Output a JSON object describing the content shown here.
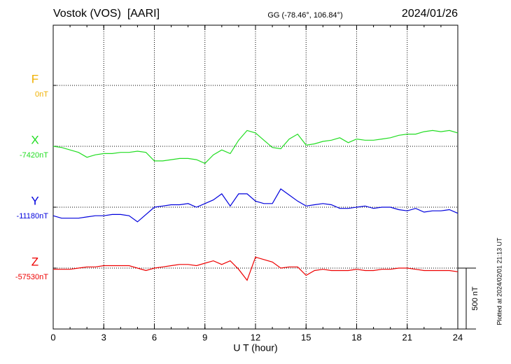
{
  "chart_data": {
    "type": "line",
    "title": "Vostok (VOS)  [AARI]",
    "subtitle": "GG (-78.46°, 106.84°)",
    "date": "2024/01/26",
    "xlabel": "U T (hour)",
    "note": "Plotted at 2024/02/01 21:13 UT",
    "xlim": [
      0,
      24
    ],
    "xticks": [
      0,
      3,
      6,
      9,
      12,
      15,
      18,
      21,
      24
    ],
    "scale_bar": {
      "value": 500,
      "label": "500 nT"
    },
    "x": [
      0,
      0.5,
      1,
      1.5,
      2,
      2.5,
      3,
      3.5,
      4,
      4.5,
      5,
      5.5,
      6,
      6.5,
      7,
      7.5,
      8,
      8.5,
      9,
      9.5,
      10,
      10.5,
      11,
      11.5,
      12,
      12.5,
      13,
      13.5,
      14,
      14.5,
      15,
      15.5,
      16,
      16.5,
      17,
      17.5,
      18,
      18.5,
      19,
      19.5,
      20,
      20.5,
      21,
      21.5,
      22,
      22.5,
      23,
      23.5,
      24
    ],
    "series": [
      {
        "name": "F",
        "color": "#f0b000",
        "baseline": {
          "value": 0,
          "label": "0nT"
        },
        "values": [
          null,
          null,
          null,
          null,
          null,
          null,
          null,
          null,
          null,
          null,
          null,
          null,
          null,
          null,
          null,
          null,
          null,
          null,
          null,
          null,
          null,
          null,
          null,
          null,
          null,
          null,
          null,
          null,
          null,
          null,
          null,
          null,
          null,
          null,
          null,
          null,
          null,
          null,
          null,
          null,
          null,
          null,
          null,
          null,
          null,
          null,
          null,
          null,
          null
        ]
      },
      {
        "name": "X",
        "color": "#22dd22",
        "baseline": {
          "value": -7420,
          "label": "-7420nT"
        },
        "values": [
          -7420,
          -7430,
          -7450,
          -7470,
          -7510,
          -7490,
          -7480,
          -7480,
          -7470,
          -7470,
          -7460,
          -7470,
          -7540,
          -7540,
          -7530,
          -7520,
          -7520,
          -7530,
          -7560,
          -7490,
          -7450,
          -7480,
          -7370,
          -7290,
          -7310,
          -7370,
          -7430,
          -7440,
          -7360,
          -7320,
          -7410,
          -7400,
          -7380,
          -7370,
          -7350,
          -7390,
          -7360,
          -7370,
          -7370,
          -7360,
          -7350,
          -7330,
          -7320,
          -7320,
          -7300,
          -7290,
          -7300,
          -7290,
          -7310
        ]
      },
      {
        "name": "Y",
        "color": "#0000dd",
        "baseline": {
          "value": -11180,
          "label": "-11180nT"
        },
        "values": [
          -11250,
          -11270,
          -11270,
          -11270,
          -11260,
          -11250,
          -11250,
          -11240,
          -11240,
          -11250,
          -11300,
          -11240,
          -11180,
          -11170,
          -11160,
          -11160,
          -11150,
          -11180,
          -11150,
          -11120,
          -11070,
          -11170,
          -11070,
          -11070,
          -11130,
          -11150,
          -11150,
          -11030,
          -11080,
          -11130,
          -11170,
          -11160,
          -11150,
          -11160,
          -11190,
          -11190,
          -11180,
          -11170,
          -11190,
          -11180,
          -11180,
          -11200,
          -11210,
          -11190,
          -11220,
          -11210,
          -11210,
          -11200,
          -11230
        ]
      },
      {
        "name": "Z",
        "color": "#ee0000",
        "baseline": {
          "value": -57530,
          "label": "-57530nT"
        },
        "values": [
          -57540,
          -57540,
          -57540,
          -57530,
          -57520,
          -57520,
          -57510,
          -57510,
          -57510,
          -57510,
          -57530,
          -57550,
          -57530,
          -57520,
          -57510,
          -57500,
          -57500,
          -57510,
          -57490,
          -57470,
          -57500,
          -57470,
          -57540,
          -57630,
          -57440,
          -57460,
          -57480,
          -57530,
          -57520,
          -57520,
          -57590,
          -57550,
          -57540,
          -57550,
          -57550,
          -57550,
          -57540,
          -57550,
          -57550,
          -57540,
          -57540,
          -57530,
          -57530,
          -57540,
          -57550,
          -57550,
          -57550,
          -57550,
          -57560
        ]
      }
    ]
  }
}
